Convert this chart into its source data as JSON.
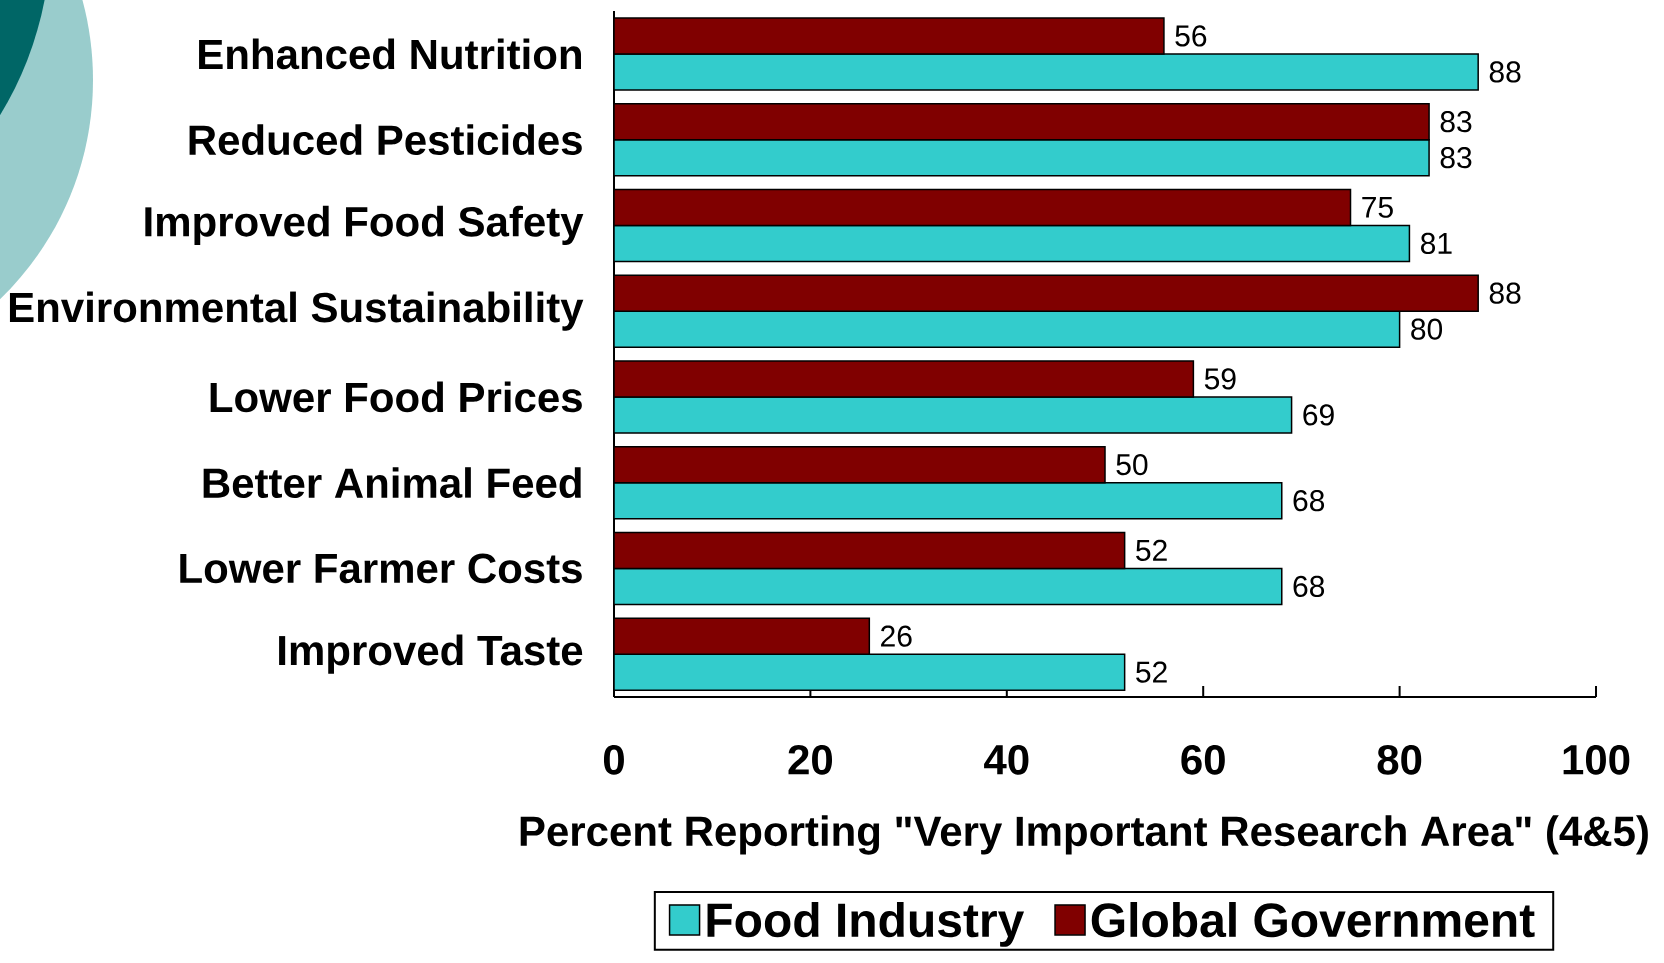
{
  "chart_data": {
    "type": "bar",
    "orientation": "horizontal",
    "categories": [
      "Enhanced Nutrition",
      "Reduced Pesticides",
      "Improved Food Safety",
      "Environmental Sustainability",
      "Lower Food Prices",
      "Better Animal Feed",
      "Lower Farmer Costs",
      "Improved Taste"
    ],
    "series": [
      {
        "name": "Food Industry",
        "color": "#33cccc",
        "values": [
          88,
          83,
          81,
          80,
          69,
          68,
          68,
          52
        ]
      },
      {
        "name": "Global Government",
        "color": "#800000",
        "values": [
          56,
          83,
          75,
          88,
          59,
          50,
          52,
          26
        ]
      }
    ],
    "xlabel": "Percent Reporting \"Very Important Research Area\" (4&5)",
    "xlim": [
      0,
      100
    ],
    "xticks": [
      0,
      20,
      40,
      60,
      80,
      100
    ],
    "data_labels": true,
    "legend": "bottom"
  }
}
